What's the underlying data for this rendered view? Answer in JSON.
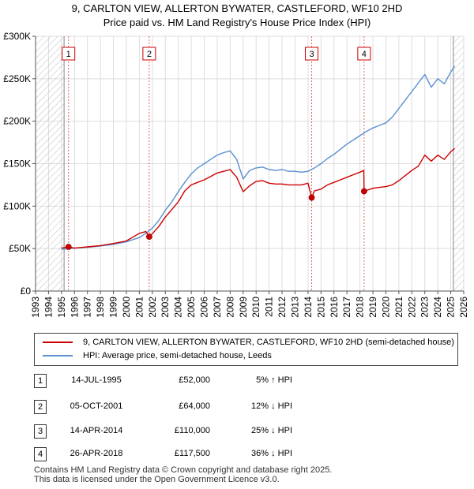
{
  "title_line1": "9, CARLTON VIEW, ALLERTON BYWATER, CASTLEFORD, WF10 2HD",
  "title_line2": "Price paid vs. HM Land Registry's House Price Index (HPI)",
  "chart_data": {
    "type": "line",
    "title": "9, CARLTON VIEW, ALLERTON BYWATER, CASTLEFORD, WF10 2HD - Price paid vs. HM Land Registry's House Price Index (HPI)",
    "xlim": [
      1993,
      2026
    ],
    "ylim": [
      0,
      300000
    ],
    "x_ticks": [
      1993,
      1994,
      1995,
      1996,
      1997,
      1998,
      1999,
      2000,
      2001,
      2002,
      2003,
      2004,
      2005,
      2006,
      2007,
      2008,
      2009,
      2010,
      2011,
      2012,
      2013,
      2014,
      2015,
      2016,
      2017,
      2018,
      2019,
      2020,
      2021,
      2022,
      2023,
      2024,
      2025,
      2026
    ],
    "y_ticks": [
      0,
      50000,
      100000,
      150000,
      200000,
      250000,
      300000
    ],
    "y_tick_labels": [
      "£0",
      "£50K",
      "£100K",
      "£150K",
      "£200K",
      "£250K",
      "£300K"
    ],
    "hatched_ranges": [
      [
        1993,
        1995.2
      ],
      [
        2025.2,
        2026
      ]
    ],
    "series": [
      {
        "name": "9, CARLTON VIEW, ALLERTON BYWATER, CASTLEFORD, WF10 2HD (semi-detached house)",
        "color": "#cc0000",
        "x": [
          1995.0,
          1995.54,
          1996.0,
          1997.0,
          1998.0,
          1999.0,
          2000.0,
          2001.0,
          2001.5,
          2001.76,
          2002.0,
          2002.5,
          2003.0,
          2003.5,
          2004.0,
          2004.5,
          2005.0,
          2005.5,
          2006.0,
          2006.5,
          2007.0,
          2007.5,
          2008.0,
          2008.5,
          2009.0,
          2009.5,
          2010.0,
          2010.5,
          2011.0,
          2011.5,
          2012.0,
          2012.5,
          2013.0,
          2013.5,
          2014.0,
          2014.28,
          2014.5,
          2015.0,
          2015.5,
          2016.0,
          2016.5,
          2017.0,
          2017.5,
          2018.0,
          2018.3,
          2018.32,
          2019.0,
          2019.5,
          2020.0,
          2020.5,
          2021.0,
          2021.5,
          2022.0,
          2022.5,
          2023.0,
          2023.5,
          2024.0,
          2024.5,
          2025.0,
          2025.3
        ],
        "y": [
          50500,
          52000,
          50500,
          52000,
          53500,
          56000,
          59000,
          68000,
          70000,
          64000,
          67500,
          76000,
          87000,
          96000,
          105000,
          118000,
          125000,
          128000,
          131000,
          135000,
          139000,
          141000,
          143000,
          134000,
          117000,
          124000,
          129000,
          130000,
          127000,
          126000,
          126000,
          125000,
          125000,
          125000,
          127000,
          110000,
          118000,
          120000,
          125000,
          128000,
          131000,
          134000,
          137000,
          140000,
          142000,
          117500,
          121000,
          122000,
          123000,
          125000,
          130000,
          136000,
          142000,
          147000,
          160000,
          153000,
          160000,
          155000,
          164000,
          168000
        ]
      },
      {
        "name": "HPI: Average price, semi-detached house, Leeds",
        "color": "#5b8fd1",
        "x": [
          1995.0,
          1996.0,
          1997.0,
          1998.0,
          1999.0,
          2000.0,
          2001.0,
          2001.5,
          2002.0,
          2002.5,
          2003.0,
          2003.5,
          2004.0,
          2004.5,
          2005.0,
          2005.5,
          2006.0,
          2006.5,
          2007.0,
          2007.5,
          2008.0,
          2008.5,
          2009.0,
          2009.5,
          2010.0,
          2010.5,
          2011.0,
          2011.5,
          2012.0,
          2012.5,
          2013.0,
          2013.5,
          2014.0,
          2014.5,
          2015.0,
          2015.5,
          2016.0,
          2016.5,
          2017.0,
          2017.5,
          2018.0,
          2018.5,
          2019.0,
          2019.5,
          2020.0,
          2020.5,
          2021.0,
          2021.5,
          2022.0,
          2022.5,
          2023.0,
          2023.5,
          2024.0,
          2024.5,
          2025.0,
          2025.3
        ],
        "y": [
          49000,
          50500,
          51500,
          53000,
          55000,
          58000,
          63000,
          68000,
          74000,
          83000,
          95000,
          105000,
          117000,
          128000,
          138000,
          145000,
          150000,
          155000,
          160000,
          163000,
          165000,
          155000,
          132000,
          142000,
          145000,
          146000,
          143000,
          142000,
          143000,
          141000,
          141000,
          140000,
          141000,
          145000,
          150000,
          156000,
          161000,
          167000,
          173000,
          178000,
          183000,
          188000,
          192000,
          195000,
          198000,
          205000,
          215000,
          225000,
          235000,
          245000,
          255000,
          240000,
          250000,
          244000,
          258000,
          265000
        ]
      }
    ],
    "sales": [
      {
        "label": "1",
        "x": 1995.54,
        "y": 52000
      },
      {
        "label": "2",
        "x": 2001.76,
        "y": 64000
      },
      {
        "label": "3",
        "x": 2014.28,
        "y": 110000
      },
      {
        "label": "4",
        "x": 2018.32,
        "y": 117500
      }
    ],
    "legend_position": "bottom"
  },
  "legend": {
    "property_label": "9, CARLTON VIEW, ALLERTON BYWATER, CASTLEFORD, WF10 2HD (semi-detached house)",
    "hpi_label": "HPI: Average price, semi-detached house, Leeds",
    "property_color": "#cc0000",
    "hpi_color": "#5b8fd1"
  },
  "transactions": [
    {
      "num": "1",
      "date": "14-JUL-1995",
      "price": "£52,000",
      "hpi": "5% ↑ HPI"
    },
    {
      "num": "2",
      "date": "05-OCT-2001",
      "price": "£64,000",
      "hpi": "12% ↓ HPI"
    },
    {
      "num": "3",
      "date": "14-APR-2014",
      "price": "£110,000",
      "hpi": "25% ↓ HPI"
    },
    {
      "num": "4",
      "date": "26-APR-2018",
      "price": "£117,500",
      "hpi": "36% ↓ HPI"
    }
  ],
  "footer_line1": "Contains HM Land Registry data © Crown copyright and database right 2025.",
  "footer_line2": "This data is licensed under the Open Government Licence v3.0."
}
